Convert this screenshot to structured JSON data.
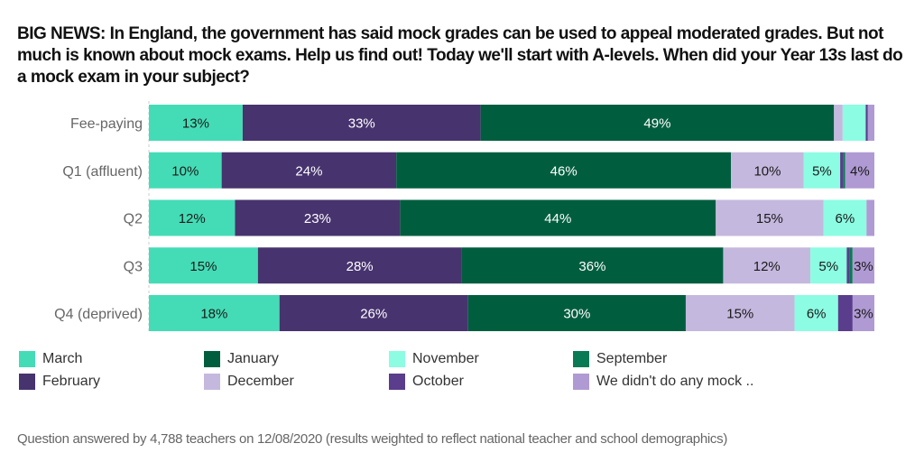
{
  "title": "BIG NEWS: In England, the government has said mock grades can be used to appeal moderated grades. But not much is known about mock exams. Help us find out! Today we'll start with A-levels.  When did your Year 13s last do a mock exam in your subject?",
  "footer": "Question answered by 4,788 teachers on 12/08/2020 (results weighted to reflect national teacher and school demographics)",
  "chart_data": {
    "type": "bar",
    "orientation": "horizontal",
    "stacked": true,
    "title": "When did your Year 13s last do a mock exam in your subject?",
    "xlabel": "",
    "ylabel": "",
    "xlim": [
      0,
      100
    ],
    "grid": false,
    "legend_position": "bottom",
    "categories": [
      "Fee-paying",
      "Q1 (affluent)",
      "Q2",
      "Q3",
      "Q4 (deprived)"
    ],
    "series": [
      {
        "name": "March",
        "color": "#44dcb6",
        "text_color": "#1a1a1a",
        "values": [
          13,
          10,
          12,
          15,
          18
        ],
        "labels": [
          "13%",
          "10%",
          "12%",
          "15%",
          "18%"
        ]
      },
      {
        "name": "February",
        "color": "#47336e",
        "text_color": "#ffffff",
        "values": [
          33,
          24,
          23,
          28,
          26
        ],
        "labels": [
          "33%",
          "24%",
          "23%",
          "28%",
          "26%"
        ]
      },
      {
        "name": "January",
        "color": "#005e3f",
        "text_color": "#ffffff",
        "values": [
          49,
          46,
          44,
          36,
          30
        ],
        "labels": [
          "49%",
          "46%",
          "44%",
          "36%",
          "30%"
        ]
      },
      {
        "name": "December",
        "color": "#c5b8de",
        "text_color": "#1a1a1a",
        "values": [
          1.2,
          10,
          15,
          12,
          15
        ],
        "labels": [
          "",
          "10%",
          "15%",
          "12%",
          "15%"
        ]
      },
      {
        "name": "November",
        "color": "#8cfce2",
        "text_color": "#1a1a1a",
        "values": [
          3.2,
          5,
          6,
          5,
          6
        ],
        "labels": [
          "",
          "5%",
          "6%",
          "5%",
          "6%"
        ]
      },
      {
        "name": "October",
        "color": "#5a3d8c",
        "text_color": "#ffffff",
        "values": [
          0.3,
          0.4,
          0,
          0.4,
          2
        ],
        "labels": [
          "",
          "",
          "",
          "",
          ""
        ]
      },
      {
        "name": "September",
        "color": "#0a7a55",
        "text_color": "#ffffff",
        "values": [
          0,
          0.3,
          0,
          0.4,
          0
        ],
        "labels": [
          "",
          "",
          "",
          "",
          ""
        ]
      },
      {
        "name": "We didn't do any mock ..",
        "color": "#b09ad4",
        "text_color": "#1a1a1a",
        "values": [
          0.9,
          4,
          1.1,
          3,
          3
        ],
        "labels": [
          "",
          "4%",
          "",
          "3%",
          "3%"
        ]
      }
    ],
    "legend": [
      {
        "name": "March",
        "color": "#44dcb6"
      },
      {
        "name": "February",
        "color": "#47336e"
      },
      {
        "name": "January",
        "color": "#005e3f"
      },
      {
        "name": "December",
        "color": "#c5b8de"
      },
      {
        "name": "November",
        "color": "#8cfce2"
      },
      {
        "name": "October",
        "color": "#5a3d8c"
      },
      {
        "name": "September",
        "color": "#0a7a55"
      },
      {
        "name": "We didn't do any mock ..",
        "color": "#b09ad4"
      }
    ]
  }
}
